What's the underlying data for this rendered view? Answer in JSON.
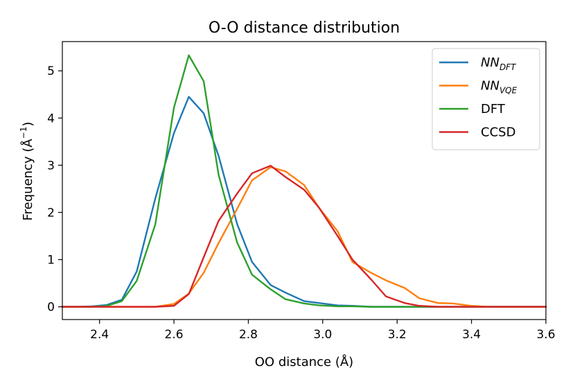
{
  "chart_data": {
    "type": "line",
    "title": "O-O distance distribution",
    "xlabel": "OO distance (Å)",
    "ylabel": "Frequency (Å",
    "ylabel_sup": "−1",
    "ylabel_end": ")",
    "xlim": [
      2.3,
      3.6
    ],
    "ylim": [
      -0.27,
      5.62
    ],
    "xticks": [
      2.4,
      2.6,
      2.8,
      3.0,
      3.2,
      3.4,
      3.6
    ],
    "xtick_labels": [
      "2.4",
      "2.6",
      "2.8",
      "3.0",
      "3.2",
      "3.4",
      "3.6"
    ],
    "yticks": [
      0,
      1,
      2,
      3,
      4,
      5
    ],
    "ytick_labels": [
      "0",
      "1",
      "2",
      "3",
      "4",
      "5"
    ],
    "legend_position": "top-right",
    "series": [
      {
        "name": "NN",
        "name_sub": "DFT",
        "italic": true,
        "color": "#1f77b4",
        "x": [
          2.3,
          2.34,
          2.38,
          2.42,
          2.46,
          2.5,
          2.55,
          2.6,
          2.64,
          2.68,
          2.72,
          2.77,
          2.81,
          2.86,
          2.9,
          2.95,
          2.99,
          3.04,
          3.08,
          3.13,
          3.17,
          3.22,
          3.26,
          3.31,
          3.35,
          3.4,
          3.44,
          3.48,
          3.53,
          3.57,
          3.6
        ],
        "y": [
          0.0,
          0.0,
          0.01,
          0.04,
          0.15,
          0.75,
          2.3,
          3.68,
          4.45,
          4.1,
          3.2,
          1.75,
          0.95,
          0.46,
          0.3,
          0.12,
          0.08,
          0.03,
          0.02,
          0.0,
          0.0,
          0.0,
          0.0,
          0.0,
          0.0,
          0.0,
          0.0,
          0.0,
          0.0,
          0.0,
          0.0
        ]
      },
      {
        "name": "NN",
        "name_sub": "VQE",
        "italic": true,
        "color": "#ff7f0e",
        "x": [
          2.3,
          2.34,
          2.38,
          2.42,
          2.46,
          2.5,
          2.55,
          2.6,
          2.64,
          2.68,
          2.72,
          2.77,
          2.81,
          2.86,
          2.9,
          2.95,
          2.99,
          3.04,
          3.08,
          3.13,
          3.17,
          3.22,
          3.26,
          3.31,
          3.35,
          3.4,
          3.44,
          3.48,
          3.53,
          3.57,
          3.6
        ],
        "y": [
          0.0,
          0.0,
          0.0,
          0.0,
          0.0,
          0.0,
          0.0,
          0.06,
          0.28,
          0.72,
          1.35,
          2.08,
          2.68,
          2.96,
          2.87,
          2.58,
          2.1,
          1.6,
          0.95,
          0.72,
          0.56,
          0.4,
          0.18,
          0.08,
          0.07,
          0.02,
          0.0,
          0.0,
          0.0,
          0.0,
          0.0
        ]
      },
      {
        "name": "DFT",
        "name_sub": "",
        "italic": false,
        "color": "#2ca02c",
        "x": [
          2.3,
          2.34,
          2.38,
          2.42,
          2.46,
          2.5,
          2.55,
          2.6,
          2.64,
          2.68,
          2.72,
          2.77,
          2.81,
          2.86,
          2.9,
          2.95,
          2.99,
          3.04,
          3.08,
          3.13,
          3.17,
          3.22,
          3.26,
          3.31,
          3.35,
          3.4,
          3.44,
          3.48,
          3.53,
          3.57,
          3.6
        ],
        "y": [
          0.0,
          0.0,
          0.0,
          0.02,
          0.12,
          0.55,
          1.75,
          4.22,
          5.33,
          4.78,
          2.8,
          1.36,
          0.68,
          0.37,
          0.16,
          0.07,
          0.03,
          0.01,
          0.01,
          0.0,
          0.0,
          0.0,
          0.0,
          0.0,
          0.0,
          0.0,
          0.0,
          0.0,
          0.0,
          0.0,
          0.0
        ]
      },
      {
        "name": "CCSD",
        "name_sub": "",
        "italic": false,
        "color": "#d62728",
        "x": [
          2.3,
          2.34,
          2.38,
          2.42,
          2.46,
          2.5,
          2.55,
          2.6,
          2.64,
          2.68,
          2.72,
          2.77,
          2.81,
          2.86,
          2.9,
          2.95,
          2.99,
          3.04,
          3.08,
          3.13,
          3.17,
          3.22,
          3.26,
          3.31,
          3.35,
          3.4,
          3.44,
          3.48,
          3.53,
          3.57,
          3.6
        ],
        "y": [
          0.0,
          0.0,
          0.0,
          0.0,
          0.0,
          0.0,
          0.0,
          0.02,
          0.27,
          1.05,
          1.82,
          2.4,
          2.83,
          2.99,
          2.75,
          2.48,
          2.1,
          1.5,
          1.0,
          0.58,
          0.22,
          0.08,
          0.02,
          0.0,
          0.0,
          0.0,
          0.0,
          0.0,
          0.0,
          0.0,
          0.0
        ]
      }
    ]
  }
}
